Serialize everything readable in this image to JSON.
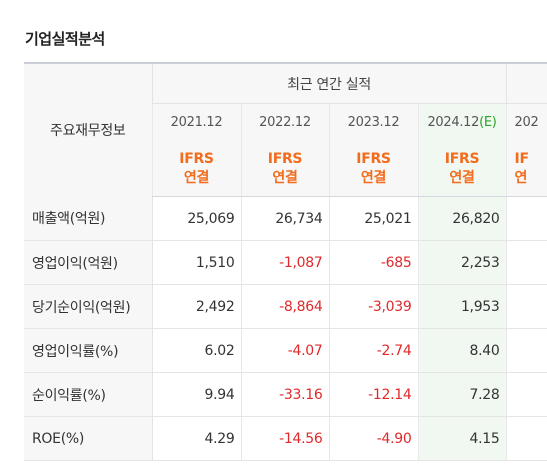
{
  "section_title": "기업실적분석",
  "table": {
    "row_header_label": "주요재무정보",
    "group_header": "최근 연간 실적",
    "periods": [
      {
        "label": "2021.12",
        "basis_top": "IFRS",
        "basis_bottom": "연결"
      },
      {
        "label": "2022.12",
        "basis_top": "IFRS",
        "basis_bottom": "연결"
      },
      {
        "label": "2023.12",
        "basis_top": "IFRS",
        "basis_bottom": "연결"
      },
      {
        "label": "2024.12",
        "est_mark": "(E)",
        "basis_top": "IFRS",
        "basis_bottom": "연결"
      },
      {
        "label": "202",
        "basis_top": "IF",
        "basis_bottom": "연"
      }
    ],
    "rows": [
      {
        "label": "매출액(억원)",
        "values": [
          "25,069",
          "26,734",
          "25,021",
          "26,820",
          ""
        ]
      },
      {
        "label": "영업이익(억원)",
        "values": [
          "1,510",
          "-1,087",
          "-685",
          "2,253",
          ""
        ]
      },
      {
        "label": "당기순이익(억원)",
        "values": [
          "2,492",
          "-8,864",
          "-3,039",
          "1,953",
          ""
        ]
      },
      {
        "label": "영업이익률(%)",
        "values": [
          "6.02",
          "-4.07",
          "-2.74",
          "8.40",
          ""
        ]
      },
      {
        "label": "순이익률(%)",
        "values": [
          "9.94",
          "-33.16",
          "-12.14",
          "7.28",
          ""
        ]
      },
      {
        "label": "ROE(%)",
        "values": [
          "4.29",
          "-14.56",
          "-4.90",
          "4.15",
          ""
        ]
      }
    ]
  },
  "colors": {
    "negative": "#e0292b",
    "basis": "#f26c1c",
    "estimate_mark": "#29a329",
    "estimate_bg": "#f1f8f1"
  }
}
